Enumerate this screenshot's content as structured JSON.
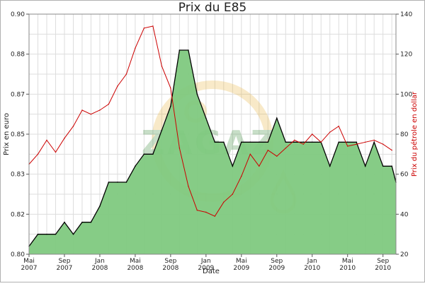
{
  "chart_data": {
    "type": "area",
    "title": "Prix du E85",
    "xlabel": "Date",
    "ylabel_left": "Prix en euro",
    "ylabel_right": "Prix du pétrole en dollar",
    "x_ticks": [
      {
        "date": "2007-05",
        "line1": "Mai",
        "line2": "2007"
      },
      {
        "date": "2007-09",
        "line1": "Sep",
        "line2": "2007"
      },
      {
        "date": "2008-01",
        "line1": "Jan",
        "line2": "2008"
      },
      {
        "date": "2008-05",
        "line1": "Mai",
        "line2": "2008"
      },
      {
        "date": "2008-09",
        "line1": "Sep",
        "line2": "2008"
      },
      {
        "date": "2009-01",
        "line1": "Jan",
        "line2": "2009"
      },
      {
        "date": "2009-05",
        "line1": "Mai",
        "line2": "2009"
      },
      {
        "date": "2009-09",
        "line1": "Sep",
        "line2": "2009"
      },
      {
        "date": "2010-01",
        "line1": "Jan",
        "line2": "2010"
      },
      {
        "date": "2010-05",
        "line1": "Mai",
        "line2": "2010"
      },
      {
        "date": "2010-09",
        "line1": "Sep",
        "line2": "2010"
      }
    ],
    "left_axis": {
      "ticks": [
        "0.80",
        "0.82",
        "0.83",
        "0.85",
        "0.87",
        "0.88",
        "0.90"
      ]
    },
    "right_axis": {
      "ticks": [
        20,
        40,
        60,
        80,
        100,
        120,
        140
      ]
    },
    "xlim": [
      "2007-05",
      "2010-10-15"
    ],
    "grid": true,
    "series": [
      {
        "kind": "area",
        "axis": "left",
        "color": "#7fc97f",
        "line_color": "#000000",
        "points": [
          [
            "2007-05",
            0.804
          ],
          [
            "2007-06",
            0.81
          ],
          [
            "2007-07",
            0.81
          ],
          [
            "2007-08",
            0.81
          ],
          [
            "2007-09",
            0.816
          ],
          [
            "2007-10",
            0.81
          ],
          [
            "2007-11",
            0.816
          ],
          [
            "2007-12",
            0.816
          ],
          [
            "2008-01",
            0.822
          ],
          [
            "2008-02",
            0.828
          ],
          [
            "2008-03",
            0.828
          ],
          [
            "2008-04",
            0.828
          ],
          [
            "2008-05",
            0.834
          ],
          [
            "2008-06",
            0.84
          ],
          [
            "2008-07",
            0.84
          ],
          [
            "2008-08",
            0.852
          ],
          [
            "2008-09",
            0.864
          ],
          [
            "2008-10",
            0.882
          ],
          [
            "2008-11",
            0.882
          ],
          [
            "2008-12",
            0.87
          ],
          [
            "2009-01",
            0.858
          ],
          [
            "2009-02",
            0.846
          ],
          [
            "2009-03",
            0.846
          ],
          [
            "2009-04",
            0.834
          ],
          [
            "2009-05",
            0.846
          ],
          [
            "2009-06",
            0.846
          ],
          [
            "2009-07",
            0.846
          ],
          [
            "2009-08",
            0.846
          ],
          [
            "2009-09",
            0.858
          ],
          [
            "2009-10",
            0.846
          ],
          [
            "2009-11",
            0.846
          ],
          [
            "2009-12",
            0.846
          ],
          [
            "2010-01",
            0.846
          ],
          [
            "2010-02",
            0.846
          ],
          [
            "2010-03",
            0.834
          ],
          [
            "2010-04",
            0.846
          ],
          [
            "2010-05",
            0.846
          ],
          [
            "2010-06",
            0.846
          ],
          [
            "2010-07",
            0.834
          ],
          [
            "2010-08",
            0.846
          ],
          [
            "2010-09",
            0.834
          ],
          [
            "2010-10",
            0.834
          ],
          [
            "2010-10-15",
            0.828
          ]
        ]
      },
      {
        "kind": "line",
        "axis": "right",
        "color": "#cc0000",
        "points": [
          [
            "2007-05",
            65
          ],
          [
            "2007-06",
            70
          ],
          [
            "2007-07",
            77
          ],
          [
            "2007-08",
            71
          ],
          [
            "2007-09",
            78
          ],
          [
            "2007-10",
            84
          ],
          [
            "2007-11",
            92
          ],
          [
            "2007-12",
            90
          ],
          [
            "2008-01",
            92
          ],
          [
            "2008-02",
            95
          ],
          [
            "2008-03",
            104
          ],
          [
            "2008-04",
            110
          ],
          [
            "2008-05",
            123
          ],
          [
            "2008-06",
            133
          ],
          [
            "2008-07",
            134
          ],
          [
            "2008-08",
            114
          ],
          [
            "2008-09",
            103
          ],
          [
            "2008-10",
            73
          ],
          [
            "2008-11",
            54
          ],
          [
            "2008-12",
            42
          ],
          [
            "2009-01",
            41
          ],
          [
            "2009-02",
            39
          ],
          [
            "2009-03",
            46
          ],
          [
            "2009-04",
            50
          ],
          [
            "2009-05",
            59
          ],
          [
            "2009-06",
            70
          ],
          [
            "2009-07",
            64
          ],
          [
            "2009-08",
            72
          ],
          [
            "2009-09",
            69
          ],
          [
            "2009-10",
            73
          ],
          [
            "2009-11",
            77
          ],
          [
            "2009-12",
            75
          ],
          [
            "2010-01",
            80
          ],
          [
            "2010-02",
            76
          ],
          [
            "2010-03",
            81
          ],
          [
            "2010-04",
            84
          ],
          [
            "2010-05",
            74
          ],
          [
            "2010-06",
            75
          ],
          [
            "2010-07",
            76
          ],
          [
            "2010-08",
            77
          ],
          [
            "2010-09",
            75
          ],
          [
            "2010-10",
            72
          ]
        ]
      }
    ],
    "watermark": "ZAGAZ"
  }
}
